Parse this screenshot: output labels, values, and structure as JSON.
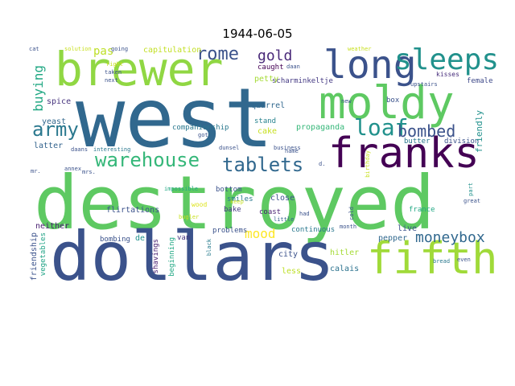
{
  "title": "1944-06-05",
  "words": [
    {
      "text": "destroyed",
      "color": "#5ec962"
    },
    {
      "text": "west",
      "color": "#31688e"
    },
    {
      "text": "dollars",
      "color": "#3b528b"
    },
    {
      "text": "brewer",
      "color": "#90d743"
    },
    {
      "text": "moldy",
      "color": "#5ec962"
    },
    {
      "text": "franks",
      "color": "#440154"
    },
    {
      "text": "fifth",
      "color": "#a0da39"
    },
    {
      "text": "long",
      "color": "#3b528b"
    },
    {
      "text": "sleeps",
      "color": "#21918c"
    },
    {
      "text": "warehouse",
      "color": "#35b779"
    },
    {
      "text": "tablets",
      "color": "#31688e"
    },
    {
      "text": "army",
      "color": "#2a788e"
    },
    {
      "text": "loaf",
      "color": "#21918c"
    },
    {
      "text": "rome",
      "color": "#3b528b"
    },
    {
      "text": "bombed",
      "color": "#3b528b"
    },
    {
      "text": "moneybox",
      "color": "#31688e"
    },
    {
      "text": "buying",
      "color": "#22a884"
    },
    {
      "text": "gold",
      "color": "#482878"
    },
    {
      "text": "mood",
      "color": "#fde725"
    },
    {
      "text": "pas",
      "color": "#bddf26"
    },
    {
      "text": "capitulation",
      "color": "#c2df23"
    },
    {
      "text": "scharminkeltje",
      "color": "#443983"
    },
    {
      "text": "quarrel",
      "color": "#31688e"
    },
    {
      "text": "companionship",
      "color": "#2a788e"
    },
    {
      "text": "propaganda",
      "color": "#35b779"
    },
    {
      "text": "caught",
      "color": "#440154"
    },
    {
      "text": "petty",
      "color": "#a5db36"
    },
    {
      "text": "stand",
      "color": "#26828e"
    },
    {
      "text": "cake",
      "color": "#c8e020"
    },
    {
      "text": "butter",
      "color": "#2a788e"
    },
    {
      "text": "division",
      "color": "#3b528b"
    },
    {
      "text": "friendly",
      "color": "#21918c"
    },
    {
      "text": "female",
      "color": "#3e4989"
    },
    {
      "text": "kisses",
      "color": "#472d7b"
    },
    {
      "text": "box",
      "color": "#3b528b"
    },
    {
      "text": "spice",
      "color": "#46337e"
    },
    {
      "text": "yeast",
      "color": "#31688e"
    },
    {
      "text": "latter",
      "color": "#33638d"
    },
    {
      "text": "neither",
      "color": "#481f70"
    },
    {
      "text": "friendship",
      "color": "#3b528b"
    },
    {
      "text": "vegetables",
      "color": "#20a386"
    },
    {
      "text": "flirtations",
      "color": "#3b528b"
    },
    {
      "text": "bombing",
      "color": "#3b528b"
    },
    {
      "text": "shavings",
      "color": "#481f70"
    },
    {
      "text": "beginning",
      "color": "#22a884"
    },
    {
      "text": "smiles",
      "color": "#2a788e"
    },
    {
      "text": "bottom",
      "color": "#3b528b"
    },
    {
      "text": "bake",
      "color": "#443983"
    },
    {
      "text": "coast",
      "color": "#481f70"
    },
    {
      "text": "close",
      "color": "#3b528b"
    },
    {
      "text": "problems",
      "color": "#3b528b"
    },
    {
      "text": "continuous",
      "color": "#2a788e"
    },
    {
      "text": "city",
      "color": "#3b528b"
    },
    {
      "text": "hitler",
      "color": "#a5db36"
    },
    {
      "text": "calais",
      "color": "#2c728e"
    },
    {
      "text": "less",
      "color": "#bddf26"
    },
    {
      "text": "live",
      "color": "#3b528b"
    },
    {
      "text": "pepper",
      "color": "#31688e"
    },
    {
      "text": "france",
      "color": "#22a884"
    },
    {
      "text": "wood",
      "color": "#dde318"
    },
    {
      "text": "van",
      "color": "#46337e"
    },
    {
      "text": "de",
      "color": "#21918c"
    },
    {
      "text": "black",
      "color": "#287c8e"
    },
    {
      "text": "bugler",
      "color": "#c8e020"
    },
    {
      "text": "impossible",
      "color": "#22a884"
    },
    {
      "text": "interesting",
      "color": "#2a788e"
    },
    {
      "text": "daans",
      "color": "#3b528b"
    },
    {
      "text": "business",
      "color": "#3b528b"
    },
    {
      "text": "dunsel",
      "color": "#3b528b"
    },
    {
      "text": "name",
      "color": "#3b528b"
    },
    {
      "text": "got",
      "color": "#3b528b"
    },
    {
      "text": "had",
      "color": "#3b528b"
    },
    {
      "text": "keep",
      "color": "#c8e020"
    },
    {
      "text": "little",
      "color": "#33638d"
    },
    {
      "text": "cold",
      "color": "#3b528b"
    },
    {
      "text": "month",
      "color": "#3b528b"
    },
    {
      "text": "birthday",
      "color": "#c8e020"
    },
    {
      "text": "part",
      "color": "#21918c"
    },
    {
      "text": "great",
      "color": "#3b528b"
    },
    {
      "text": "bread",
      "color": "#2a788e"
    },
    {
      "text": "even",
      "color": "#3b528b"
    },
    {
      "text": "annex",
      "color": "#3b528b"
    },
    {
      "text": "mr.",
      "color": "#3b528b"
    },
    {
      "text": "mrs.",
      "color": "#3b528b"
    },
    {
      "text": "taken",
      "color": "#3b528b"
    },
    {
      "text": "next",
      "color": "#3b528b"
    },
    {
      "text": "going",
      "color": "#3b528b"
    },
    {
      "text": "cat",
      "color": "#3b528b"
    },
    {
      "text": "solution",
      "color": "#c8e020"
    },
    {
      "text": "right",
      "color": "#c8e020"
    },
    {
      "text": "weather",
      "color": "#c8e020"
    },
    {
      "text": "upstairs",
      "color": "#3b528b"
    },
    {
      "text": "daan",
      "color": "#3b528b"
    },
    {
      "text": "new",
      "color": "#3b528b"
    },
    {
      "text": "d.",
      "color": "#3b528b"
    }
  ]
}
